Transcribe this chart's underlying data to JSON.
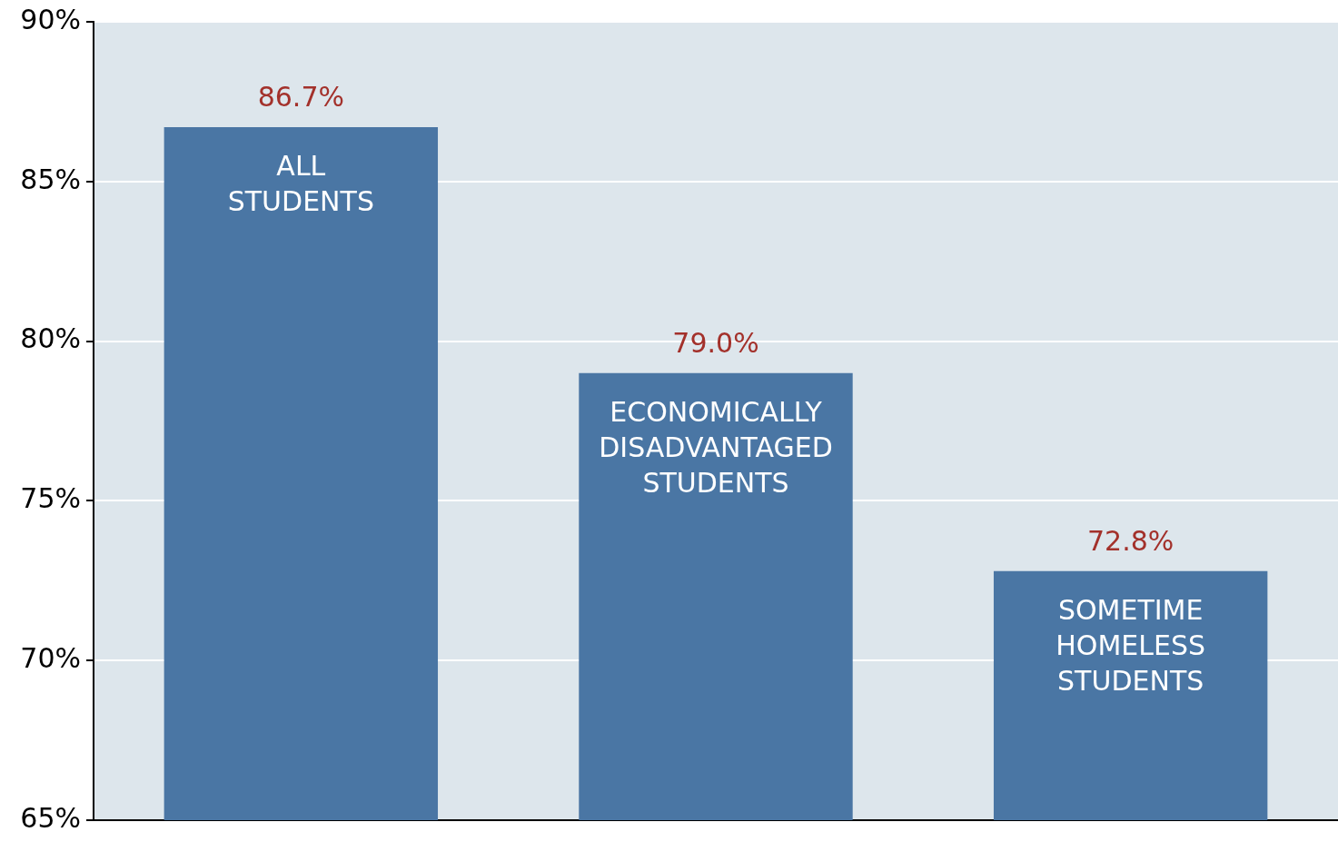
{
  "chart_data": {
    "type": "bar",
    "categories": [
      "ALL STUDENTS",
      "ECONOMICALLY DISADVANTAGED STUDENTS",
      "SOMETIME HOMELESS STUDENTS"
    ],
    "values": [
      86.7,
      79.0,
      72.8
    ],
    "value_labels": [
      "86.7%",
      "79.0%",
      "72.8%"
    ],
    "color": "#4a76a4",
    "ylim": [
      65,
      90
    ],
    "yticks": [
      {
        "value": 65,
        "label": "65%"
      },
      {
        "value": 70,
        "label": "70%"
      },
      {
        "value": 75,
        "label": "75%"
      },
      {
        "value": 80,
        "label": "80%"
      },
      {
        "value": 85,
        "label": "85%"
      },
      {
        "value": 90,
        "label": "90%"
      }
    ],
    "grid": "y",
    "legend": false
  }
}
